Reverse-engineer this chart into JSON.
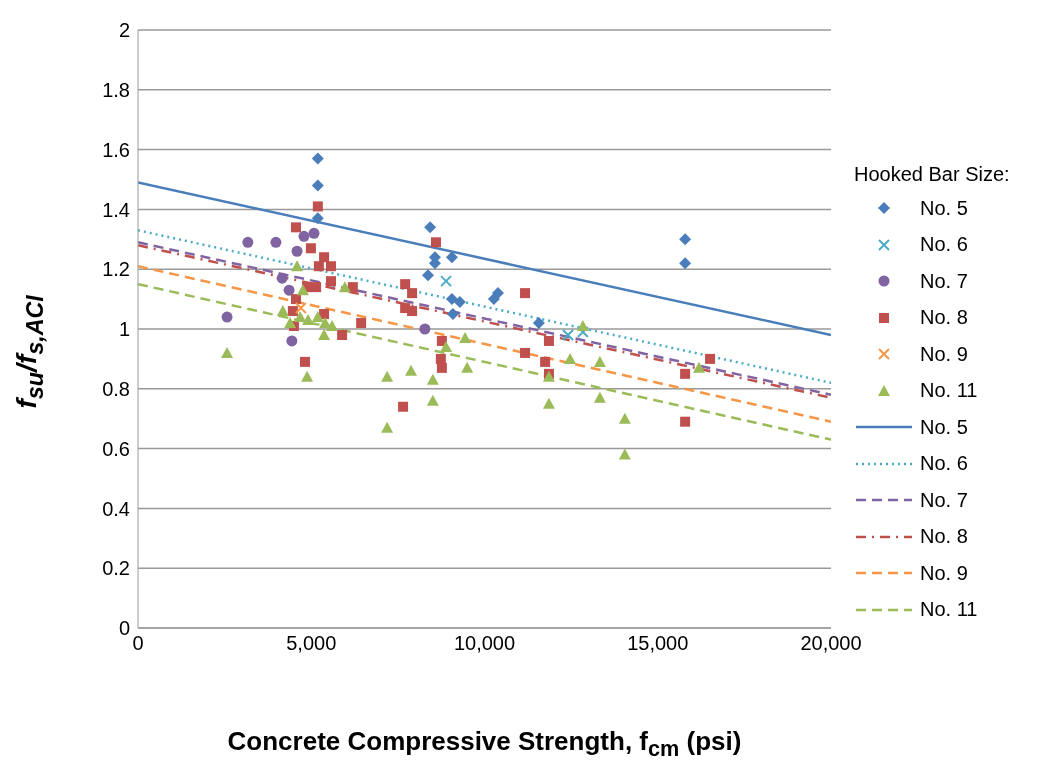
{
  "chart_data": {
    "type": "scatter",
    "xlabel": "Concrete Compressive Strength, f$_{cm}$ (psi)",
    "ylabel": "f$_{su}$/f$_{s,ACI}$",
    "legend_title": "Hooked Bar Size:",
    "legend": "right",
    "grid": "y",
    "xlim": [
      0,
      20000
    ],
    "xticks": [
      0,
      {
        "value": 5000,
        "label": "5,000"
      },
      {
        "value": 10000,
        "label": "10,000"
      },
      {
        "value": 15000,
        "label": "15,000"
      },
      {
        "value": 20000,
        "label": "20,000"
      }
    ],
    "ylim": [
      0,
      2
    ],
    "yticks": [
      0,
      0.2,
      0.4,
      0.6,
      0.8,
      1,
      1.2,
      1.4,
      1.6,
      1.8,
      2
    ],
    "series": [
      {
        "name": "No. 5",
        "marker": "diamond",
        "color": "#4a7ebb",
        "x": [
          5190,
          5190,
          5190,
          8430,
          8570,
          8570,
          8370,
          9060,
          9060,
          9290,
          9090,
          10270,
          10390,
          11570,
          15790,
          15790
        ],
        "values": [
          1.57,
          1.48,
          1.37,
          1.34,
          1.24,
          1.22,
          1.18,
          1.24,
          1.1,
          1.09,
          1.05,
          1.1,
          1.12,
          1.02,
          1.3,
          1.22
        ]
      },
      {
        "name": "No. 6",
        "marker": "cross",
        "color": "#4bacc6",
        "x": [
          8890,
          12410,
          12840
        ],
        "values": [
          1.16,
          0.98,
          0.99
        ]
      },
      {
        "name": "No. 7",
        "marker": "circle",
        "color": "#8064a2",
        "x": [
          3170,
          3980,
          4790,
          5080,
          4590,
          4160,
          4360,
          2570,
          4440,
          8280
        ],
        "values": [
          1.29,
          1.29,
          1.31,
          1.32,
          1.26,
          1.17,
          1.13,
          1.04,
          0.96,
          1.0
        ]
      },
      {
        "name": "No. 8",
        "marker": "square",
        "color": "#c0504d",
        "x": [
          5190,
          4560,
          4990,
          5370,
          5220,
          5570,
          5570,
          5140,
          4880,
          6200,
          4560,
          4470,
          4500,
          5370,
          6440,
          5890,
          4820,
          7650,
          8600,
          7710,
          7910,
          7710,
          7910,
          11170,
          8770,
          8740,
          8770,
          11860,
          11170,
          11750,
          11860,
          16510,
          15790,
          15790
        ],
        "values": [
          1.41,
          1.34,
          1.27,
          1.24,
          1.21,
          1.21,
          1.16,
          1.14,
          1.14,
          1.14,
          1.1,
          1.06,
          1.01,
          1.05,
          1.02,
          0.98,
          0.89,
          0.74,
          1.29,
          1.15,
          1.12,
          1.07,
          1.06,
          1.12,
          0.96,
          0.9,
          0.87,
          0.96,
          0.92,
          0.89,
          0.85,
          0.9,
          0.85,
          0.69
        ]
      },
      {
        "name": "No. 9",
        "marker": "cross",
        "color": "#f79646",
        "x": [
          4700
        ],
        "values": [
          1.07
        ]
      },
      {
        "name": "No. 11",
        "marker": "triangle",
        "color": "#9bbb59",
        "x": [
          4590,
          4760,
          5970,
          4180,
          4390,
          4680,
          4910,
          5190,
          5400,
          5600,
          5370,
          2570,
          4880,
          7190,
          7190,
          7880,
          8510,
          8510,
          8890,
          9440,
          9500,
          11860,
          11860,
          12470,
          12840,
          13330,
          13330,
          14050,
          14050,
          16190
        ],
        "values": [
          1.21,
          1.13,
          1.14,
          1.06,
          1.02,
          1.04,
          1.03,
          1.04,
          1.02,
          1.01,
          0.98,
          0.92,
          0.84,
          0.84,
          0.67,
          0.86,
          0.83,
          0.76,
          0.94,
          0.97,
          0.87,
          0.84,
          0.75,
          0.9,
          1.01,
          0.89,
          0.77,
          0.7,
          0.58,
          0.87
        ]
      },
      {
        "name": "No. 5",
        "type": "line",
        "line_style": "solid",
        "color": "#4a7ebb",
        "x": [
          0,
          20000
        ],
        "values": [
          1.49,
          0.98
        ]
      },
      {
        "name": "No. 6",
        "type": "line",
        "line_style": "dotted",
        "color": "#4bacc6",
        "x": [
          0,
          20000
        ],
        "values": [
          1.33,
          0.82
        ]
      },
      {
        "name": "No. 7",
        "type": "line",
        "line_style": "dashed",
        "color": "#8064a2",
        "x": [
          0,
          20000
        ],
        "values": [
          1.29,
          0.78
        ]
      },
      {
        "name": "No. 8",
        "type": "line",
        "line_style": "dashdot",
        "color": "#c0504d",
        "x": [
          0,
          20000
        ],
        "values": [
          1.28,
          0.77
        ]
      },
      {
        "name": "No. 9",
        "type": "line",
        "line_style": "dashed",
        "color": "#f79646",
        "x": [
          0,
          20000
        ],
        "values": [
          1.21,
          0.69
        ]
      },
      {
        "name": "No. 11",
        "type": "line",
        "line_style": "dashed",
        "color": "#9bbb59",
        "x": [
          0,
          20000
        ],
        "values": [
          1.15,
          0.63
        ]
      }
    ]
  }
}
